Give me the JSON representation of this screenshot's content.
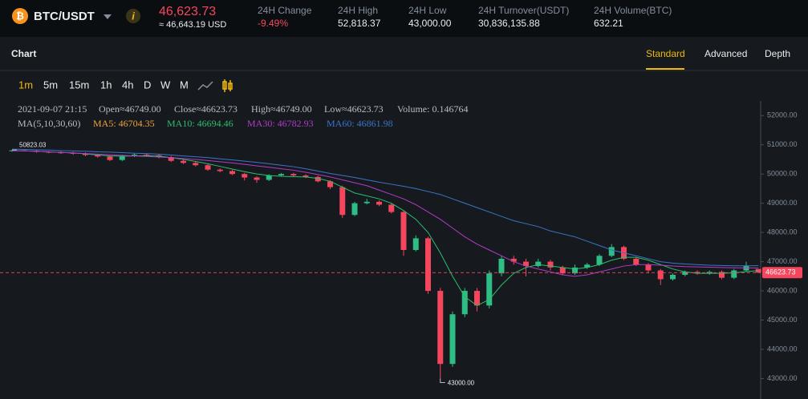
{
  "header": {
    "symbol": "BTC/USDT",
    "price": "46,623.73",
    "price_usd": "≈ 46,643.19 USD",
    "stats": [
      {
        "label": "24H Change",
        "value": "-9.49%"
      },
      {
        "label": "24H High",
        "value": "52,818.37"
      },
      {
        "label": "24H Low",
        "value": "43,000.00"
      },
      {
        "label": "24H Turnover(USDT)",
        "value": "30,836,135.88"
      },
      {
        "label": "24H Volume(BTC)",
        "value": "632.21"
      }
    ]
  },
  "tabs": {
    "title": "Chart",
    "views": [
      "Standard",
      "Advanced",
      "Depth"
    ]
  },
  "intervals": [
    "1m",
    "5m",
    "15m",
    "1h",
    "4h",
    "D",
    "W",
    "M"
  ],
  "info": [
    "2021-09-07 21:15",
    "Open≈46749.00",
    "Close≈46623.73",
    "High≈46749.00",
    "Low≈46623.73",
    "Volume: 0.146764"
  ],
  "ma_legend": {
    "title": "MA(5,10,30,60)",
    "ma5": "MA5: 46704.35",
    "ma5_color": "#f0a03c"
  },
  "chart_data": {
    "type": "candlestick",
    "up_color": "#2ebd85",
    "down_color": "#f6465d",
    "open": [
      50790,
      50810,
      50800,
      50760,
      50740,
      50720,
      50700,
      50650,
      50600,
      50480,
      50620,
      50660,
      50640,
      50580,
      50450,
      50380,
      50300,
      50150,
      50100,
      50000,
      49880,
      49800,
      49950,
      50000,
      49950,
      49900,
      49750,
      49550,
      48600,
      49000,
      49050,
      48950,
      48700,
      47400,
      47800,
      46000,
      43500,
      45200,
      46000,
      45500,
      46600,
      47100,
      47000,
      46850,
      47000,
      46800,
      46600,
      46800,
      46900,
      47200,
      47500,
      47100,
      46900,
      46700,
      46400,
      46550,
      46650,
      46600,
      46650,
      46450,
      46700,
      46749
    ],
    "high": [
      50823.03,
      50820,
      50815,
      50790,
      50780,
      50760,
      50740,
      50690,
      50640,
      50660,
      50700,
      50700,
      50680,
      50620,
      50490,
      50420,
      50340,
      50190,
      50140,
      50040,
      49920,
      49990,
      50040,
      50040,
      49990,
      49940,
      49790,
      49600,
      49050,
      49150,
      49100,
      49000,
      48750,
      47900,
      47850,
      46100,
      45300,
      46100,
      46100,
      46700,
      47200,
      47200,
      47100,
      47100,
      47060,
      46860,
      46900,
      46960,
      47260,
      47600,
      47550,
      47150,
      46950,
      46750,
      46600,
      46700,
      46700,
      46700,
      46700,
      46750,
      47000,
      46749
    ],
    "low": [
      50760,
      50770,
      50730,
      50710,
      50690,
      50660,
      50610,
      50560,
      50440,
      50440,
      50580,
      50600,
      50540,
      50410,
      50340,
      50260,
      50110,
      50060,
      49960,
      49780,
      49700,
      49760,
      49910,
      49910,
      49860,
      49710,
      49480,
      48500,
      48560,
      48960,
      48900,
      48650,
      47200,
      47350,
      45900,
      43000,
      43400,
      45100,
      45300,
      45400,
      46500,
      46900,
      46500,
      46800,
      46700,
      46550,
      46550,
      46750,
      46850,
      47150,
      47050,
      46850,
      46600,
      46200,
      46350,
      46500,
      46550,
      46550,
      46400,
      46400,
      46650,
      46623.73
    ],
    "close": [
      50810,
      50800,
      50760,
      50740,
      50720,
      50700,
      50650,
      50600,
      50480,
      50620,
      50660,
      50640,
      50580,
      50450,
      50380,
      50300,
      50150,
      50100,
      50000,
      49880,
      49800,
      49950,
      50000,
      49950,
      49900,
      49750,
      49550,
      48600,
      49000,
      49050,
      48950,
      48700,
      47400,
      47800,
      46000,
      43500,
      45200,
      46000,
      45500,
      46600,
      47100,
      47000,
      46850,
      47000,
      46800,
      46600,
      46800,
      46900,
      47200,
      47500,
      47100,
      46900,
      46700,
      46400,
      46550,
      46650,
      46600,
      46650,
      46450,
      46700,
      46850,
      46623.73
    ],
    "series": [
      {
        "name": "MA10: 46694.46",
        "color": "#2dbd6e",
        "values": [
          50800,
          50790,
          50780,
          50760,
          50740,
          50720,
          50690,
          50650,
          50620,
          50610,
          50620,
          50630,
          50610,
          50560,
          50500,
          50430,
          50350,
          50260,
          50170,
          50080,
          50000,
          49950,
          49920,
          49910,
          49900,
          49850,
          49750,
          49550,
          49350,
          49250,
          49150,
          49000,
          48750,
          48450,
          48000,
          47300,
          46500,
          45800,
          45500,
          45700,
          46200,
          46600,
          46800,
          46900,
          46850,
          46800,
          46750,
          46800,
          46900,
          47050,
          47150,
          47150,
          47050,
          46900,
          46750,
          46650,
          46600,
          46600,
          46600,
          46620,
          46660,
          46694.46
        ]
      },
      {
        "name": "MA30: 46782.93",
        "color": "#b23ac8",
        "values": [
          50800,
          50790,
          50780,
          50760,
          50740,
          50720,
          50700,
          50680,
          50660,
          50640,
          50620,
          50600,
          50580,
          50560,
          50530,
          50500,
          50460,
          50420,
          50380,
          50330,
          50280,
          50230,
          50180,
          50130,
          50060,
          49980,
          49900,
          49800,
          49700,
          49600,
          49450,
          49300,
          49150,
          48950,
          48700,
          48450,
          48150,
          47850,
          47600,
          47400,
          47200,
          47000,
          46850,
          46750,
          46650,
          46550,
          46500,
          46550,
          46650,
          46750,
          46850,
          46900,
          46900,
          46880,
          46850,
          46830,
          46820,
          46810,
          46800,
          46790,
          46785,
          46782.93
        ]
      },
      {
        "name": "MA60: 46861.98",
        "color": "#3b74c9",
        "values": [
          50850,
          50840,
          50830,
          50820,
          50800,
          50790,
          50780,
          50760,
          50750,
          50730,
          50710,
          50700,
          50680,
          50650,
          50620,
          50590,
          50560,
          50520,
          50480,
          50440,
          50400,
          50350,
          50300,
          50250,
          50180,
          50100,
          50020,
          49950,
          49880,
          49800,
          49720,
          49650,
          49580,
          49500,
          49400,
          49300,
          49150,
          49000,
          48850,
          48700,
          48550,
          48400,
          48300,
          48200,
          48050,
          47950,
          47850,
          47700,
          47550,
          47400,
          47300,
          47200,
          47100,
          47000,
          46950,
          46920,
          46900,
          46880,
          46870,
          46860,
          46860,
          46861.98
        ]
      }
    ],
    "ylim": [
      42300,
      52500
    ],
    "yticks": [
      {
        "value": 43000,
        "label": "43000.00"
      },
      {
        "value": 44000,
        "label": "44000.00"
      },
      {
        "value": 45000,
        "label": "45000.00"
      },
      {
        "value": 46000,
        "label": "46000.00"
      },
      {
        "value": 47000,
        "label": "47000.00"
      },
      {
        "value": 48000,
        "label": "48000.00"
      },
      {
        "value": 49000,
        "label": "49000.00"
      },
      {
        "value": 50000,
        "label": "50000.00"
      },
      {
        "value": 51000,
        "label": "51000.00"
      },
      {
        "value": 52000,
        "label": "52000.00"
      }
    ],
    "high_label": "50823.03",
    "low_label": "43000.00",
    "last_price_label": "46623.73"
  }
}
